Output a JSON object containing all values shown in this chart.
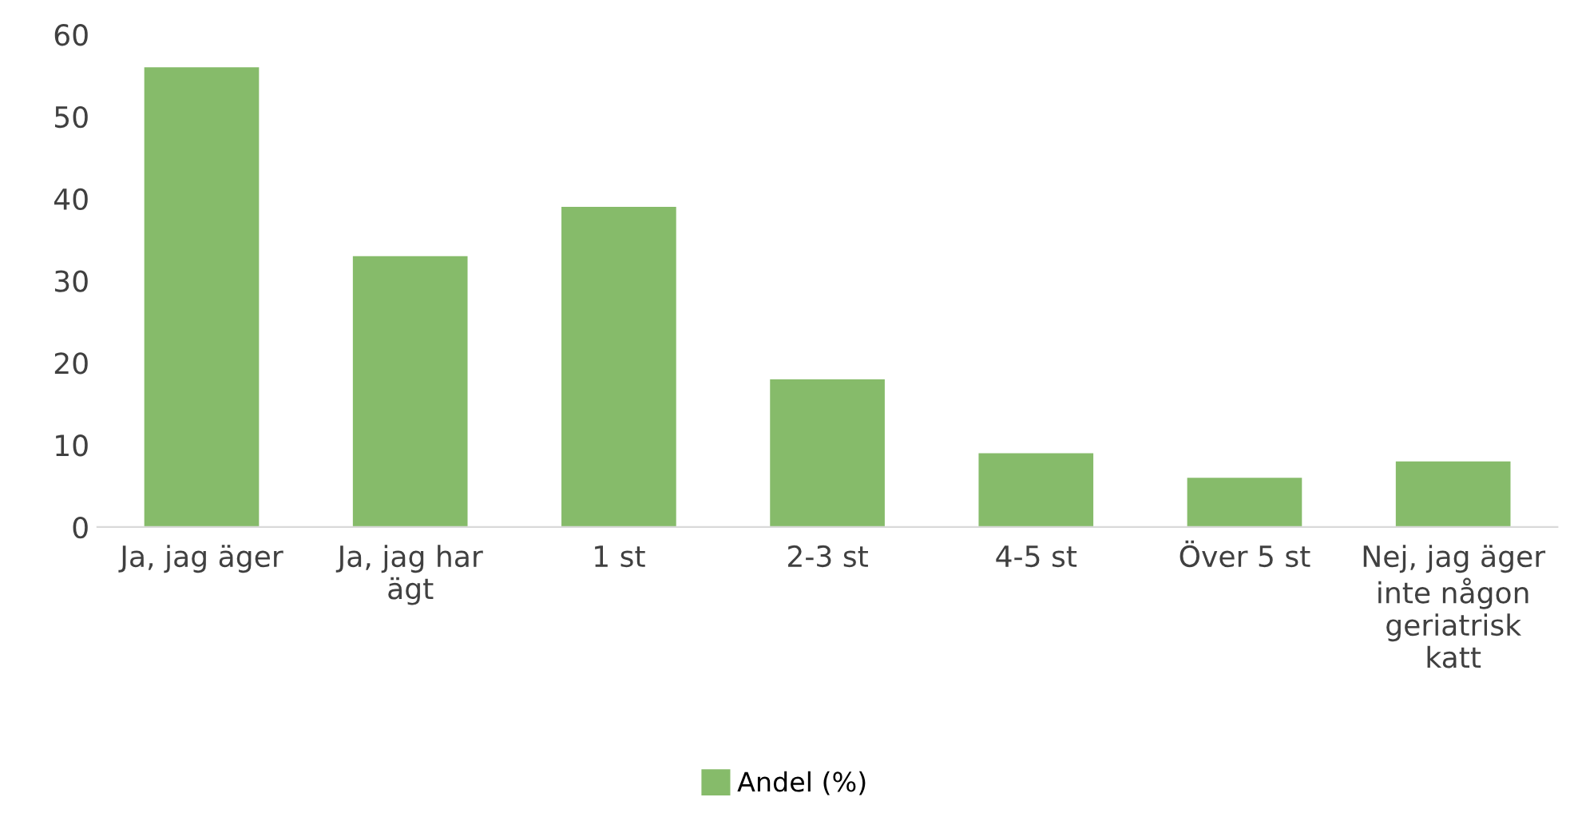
{
  "chart_data": {
    "type": "bar",
    "categories": [
      "Ja, jag äger",
      "Ja, jag har\nägt",
      "1 st",
      "2-3 st",
      "4-5 st",
      "Över 5 st",
      "Nej, jag äger\ninte någon\ngeriatrisk\nkatt"
    ],
    "series": [
      {
        "name": "Andel (%)",
        "color": "#86bb6a",
        "values": [
          56,
          33,
          39,
          18,
          9,
          6,
          8
        ]
      }
    ],
    "ylim": [
      0,
      60
    ],
    "yticks": [
      0,
      10,
      20,
      30,
      40,
      50,
      60
    ],
    "grid": false,
    "legend": "bottom"
  }
}
